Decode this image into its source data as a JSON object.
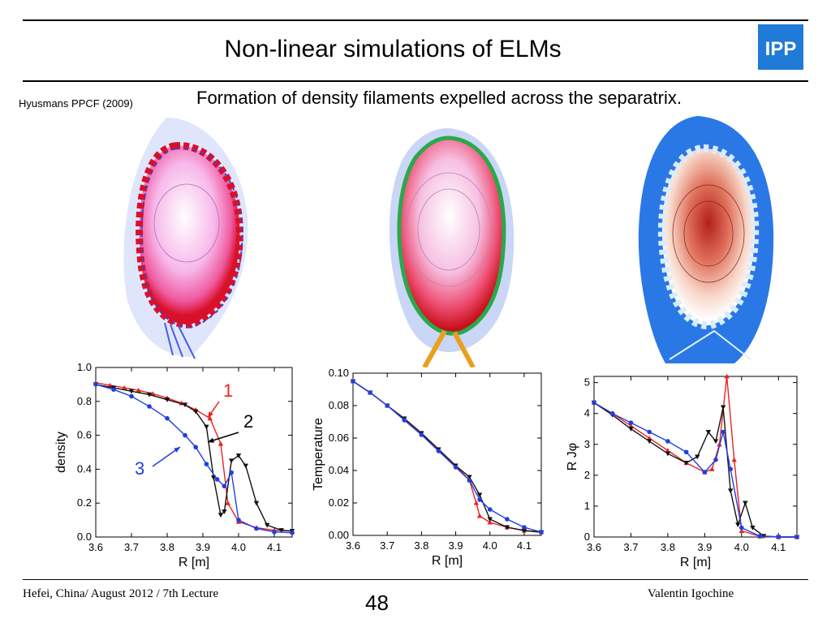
{
  "slide": {
    "title": "Non-linear simulations of ELMs",
    "citation": "Hyusmans PPCF (2009)",
    "subtitle": "Formation of density filaments expelled across the separatrix.",
    "logo_text": "IPP",
    "footer_left": "Hefei, China/ August 2012 / 7th Lecture",
    "footer_right": "Valentin Igochine",
    "page_number": "48",
    "colors": {
      "logo": "#1f7bd6",
      "series1": "#e8231f",
      "series2": "#111111",
      "series3": "#1f3fe0"
    }
  },
  "chart_data": [
    {
      "type": "line",
      "xlabel": "R [m]",
      "ylabel": "density",
      "xlim": [
        3.6,
        4.15
      ],
      "ylim": [
        0,
        1.0
      ],
      "xticks": [
        "3.6",
        "3.7",
        "3.8",
        "3.9",
        "4.0",
        "4.1"
      ],
      "yticks": [
        "0.0",
        "0.2",
        "0.4",
        "0.6",
        "0.8",
        "1.0"
      ],
      "annotations": [
        {
          "text": "1",
          "color": "#e8231f"
        },
        {
          "text": "2",
          "color": "#000000"
        },
        {
          "text": "3",
          "color": "#1f3fe0"
        }
      ],
      "series": [
        {
          "color": "#e8231f",
          "marker": "triangle-up",
          "x": [
            3.6,
            3.64,
            3.68,
            3.72,
            3.76,
            3.8,
            3.84,
            3.88,
            3.92,
            3.95,
            3.97,
            4.0,
            4.05,
            4.1,
            4.15
          ],
          "y": [
            0.91,
            0.895,
            0.88,
            0.865,
            0.845,
            0.82,
            0.79,
            0.75,
            0.7,
            0.55,
            0.2,
            0.09,
            0.055,
            0.04,
            0.035
          ]
        },
        {
          "color": "#111111",
          "marker": "triangle-down",
          "x": [
            3.6,
            3.65,
            3.7,
            3.75,
            3.8,
            3.85,
            3.88,
            3.91,
            3.93,
            3.95,
            3.96,
            3.98,
            4.0,
            4.02,
            4.05,
            4.08,
            4.12,
            4.15
          ],
          "y": [
            0.9,
            0.88,
            0.86,
            0.84,
            0.81,
            0.78,
            0.74,
            0.65,
            0.35,
            0.13,
            0.15,
            0.45,
            0.48,
            0.42,
            0.2,
            0.07,
            0.04,
            0.035
          ]
        },
        {
          "color": "#1f3fe0",
          "marker": "circle",
          "x": [
            3.6,
            3.65,
            3.7,
            3.75,
            3.8,
            3.85,
            3.88,
            3.91,
            3.94,
            3.96,
            3.98,
            4.0,
            4.05,
            4.1,
            4.15
          ],
          "y": [
            0.9,
            0.87,
            0.83,
            0.77,
            0.7,
            0.6,
            0.53,
            0.43,
            0.34,
            0.3,
            0.38,
            0.1,
            0.05,
            0.03,
            0.025
          ]
        }
      ]
    },
    {
      "type": "line",
      "xlabel": "R [m]",
      "ylabel": "Temperature",
      "xlim": [
        3.6,
        4.15
      ],
      "ylim": [
        0,
        0.1
      ],
      "xticks": [
        "3.6",
        "3.7",
        "3.8",
        "3.9",
        "4.0",
        "4.1"
      ],
      "yticks": [
        "0.00",
        "0.02",
        "0.04",
        "0.06",
        "0.08",
        "0.10"
      ],
      "series": [
        {
          "color": "#e8231f",
          "marker": "triangle-up",
          "x": [
            3.6,
            3.65,
            3.7,
            3.75,
            3.8,
            3.85,
            3.9,
            3.94,
            3.96,
            3.97,
            4.0,
            4.05,
            4.1,
            4.15
          ],
          "y": [
            0.095,
            0.088,
            0.08,
            0.072,
            0.063,
            0.053,
            0.043,
            0.034,
            0.02,
            0.012,
            0.008,
            0.005,
            0.003,
            0.002
          ]
        },
        {
          "color": "#111111",
          "marker": "triangle-down",
          "x": [
            3.6,
            3.65,
            3.7,
            3.75,
            3.8,
            3.85,
            3.9,
            3.94,
            3.97,
            4.0,
            4.05,
            4.1,
            4.15
          ],
          "y": [
            0.095,
            0.088,
            0.08,
            0.072,
            0.063,
            0.053,
            0.043,
            0.036,
            0.025,
            0.01,
            0.005,
            0.003,
            0.002
          ]
        },
        {
          "color": "#1f3fe0",
          "marker": "circle",
          "x": [
            3.6,
            3.65,
            3.7,
            3.75,
            3.8,
            3.85,
            3.9,
            3.94,
            3.97,
            4.0,
            4.05,
            4.1,
            4.15
          ],
          "y": [
            0.095,
            0.088,
            0.08,
            0.071,
            0.062,
            0.052,
            0.042,
            0.034,
            0.022,
            0.016,
            0.01,
            0.005,
            0.002
          ]
        }
      ]
    },
    {
      "type": "line",
      "xlabel": "R [m]",
      "ylabel": "R Jφ",
      "xlim": [
        3.6,
        4.15
      ],
      "ylim": [
        0,
        5.2
      ],
      "xticks": [
        "3.6",
        "3.7",
        "3.8",
        "3.9",
        "4.0",
        "4.1"
      ],
      "yticks": [
        "0",
        "1",
        "2",
        "3",
        "4",
        "5"
      ],
      "series": [
        {
          "color": "#e8231f",
          "marker": "triangle-up",
          "x": [
            3.6,
            3.65,
            3.7,
            3.75,
            3.8,
            3.85,
            3.9,
            3.92,
            3.94,
            3.96,
            3.98,
            4.0,
            4.05,
            4.1,
            4.15
          ],
          "y": [
            4.35,
            4.0,
            3.6,
            3.2,
            2.8,
            2.4,
            2.1,
            2.2,
            3.0,
            5.2,
            2.5,
            0.2,
            0.02,
            0.0,
            0.0
          ]
        },
        {
          "color": "#111111",
          "marker": "triangle-down",
          "x": [
            3.6,
            3.65,
            3.7,
            3.75,
            3.8,
            3.85,
            3.88,
            3.91,
            3.93,
            3.95,
            3.97,
            3.99,
            4.01,
            4.03,
            4.06,
            4.1,
            4.15
          ],
          "y": [
            4.35,
            3.95,
            3.5,
            3.1,
            2.7,
            2.4,
            2.6,
            3.4,
            3.1,
            4.2,
            1.5,
            0.4,
            1.1,
            0.3,
            0.03,
            0.0,
            0.0
          ]
        },
        {
          "color": "#1f3fe0",
          "marker": "circle",
          "x": [
            3.6,
            3.65,
            3.7,
            3.75,
            3.8,
            3.85,
            3.9,
            3.93,
            3.95,
            3.97,
            4.0,
            4.05,
            4.1,
            4.15
          ],
          "y": [
            4.35,
            4.0,
            3.7,
            3.4,
            3.1,
            2.75,
            2.1,
            2.5,
            3.4,
            2.2,
            0.3,
            0.03,
            0.0,
            0.0
          ]
        }
      ]
    }
  ]
}
